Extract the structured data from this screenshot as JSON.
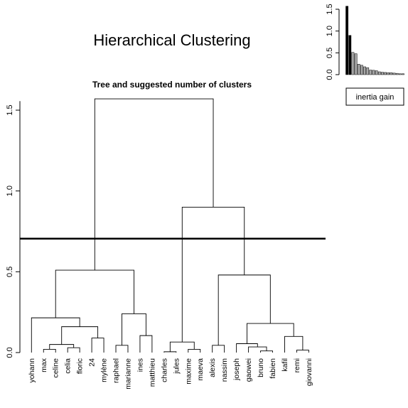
{
  "figure": {
    "title": "Hierarchical Clustering"
  },
  "chart_data": [
    {
      "type": "dendrogram",
      "subtitle": "Tree and suggested number of clusters",
      "ylim": [
        0,
        1.6
      ],
      "yticks": [
        0.0,
        0.5,
        1.0,
        1.5
      ],
      "ytick_labels": [
        "0.0",
        "0.5",
        "1.0",
        "1.5"
      ],
      "cut_height": 0.705,
      "leaves": [
        "yohann",
        "max",
        "celine",
        "celia",
        "floric",
        "24",
        "mylène",
        "raphael",
        "marianne",
        "ines",
        "matthieu",
        "charles",
        "jules",
        "maxime",
        "maeva",
        "alexis",
        "nassim",
        "joseph",
        "gaowei",
        "bruno",
        "fabien",
        "kafil",
        "remi",
        "giovanni"
      ],
      "merges": [
        {
          "id": "m1",
          "left": "L1",
          "right": "L2",
          "height": 0.02
        },
        {
          "id": "m2",
          "left": "L3",
          "right": "L4",
          "height": 0.03
        },
        {
          "id": "m3",
          "left": "L5",
          "right": "L6",
          "height": 0.09
        },
        {
          "id": "m4",
          "left": "m1",
          "right": "m2",
          "height": 0.05
        },
        {
          "id": "m5",
          "left": "m4",
          "right": "m3",
          "height": 0.16
        },
        {
          "id": "m6",
          "left": "L0",
          "right": "m5",
          "height": 0.215
        },
        {
          "id": "m7",
          "left": "L9",
          "right": "L10",
          "height": 0.105
        },
        {
          "id": "m8",
          "left": "L7",
          "right": "L8",
          "height": 0.045
        },
        {
          "id": "m9",
          "left": "m8",
          "right": "m7",
          "height": 0.24
        },
        {
          "id": "m10",
          "left": "m6",
          "right": "m9",
          "height": 0.51
        },
        {
          "id": "m11",
          "left": "L11",
          "right": "L12",
          "height": 0.005
        },
        {
          "id": "m12",
          "left": "L13",
          "right": "L14",
          "height": 0.02
        },
        {
          "id": "m13",
          "left": "m11",
          "right": "m12",
          "height": 0.065
        },
        {
          "id": "m14",
          "left": "L15",
          "right": "L16",
          "height": 0.045
        },
        {
          "id": "m15",
          "left": "L19",
          "right": "L20",
          "height": 0.01
        },
        {
          "id": "m16",
          "left": "L18",
          "right": "m15",
          "height": 0.035
        },
        {
          "id": "m17",
          "left": "L17",
          "right": "m16",
          "height": 0.055
        },
        {
          "id": "m18",
          "left": "L22",
          "right": "L23",
          "height": 0.015
        },
        {
          "id": "m19",
          "left": "L21",
          "right": "m18",
          "height": 0.1
        },
        {
          "id": "m20",
          "left": "m17",
          "right": "m19",
          "height": 0.18
        },
        {
          "id": "m21",
          "left": "m14",
          "right": "m20",
          "height": 0.48
        },
        {
          "id": "m22",
          "left": "m13",
          "right": "m21",
          "height": 0.9
        },
        {
          "id": "m23",
          "left": "m10",
          "right": "m22",
          "height": 1.57
        }
      ]
    },
    {
      "type": "bar",
      "name": "inertia gain",
      "legend_label": "inertia gain",
      "ylim": [
        0,
        1.6
      ],
      "yticks": [
        0.0,
        0.5,
        1.0,
        1.5
      ],
      "ytick_labels": [
        "0.0",
        "0.5",
        "1.0",
        "1.5"
      ],
      "values": [
        1.57,
        0.9,
        0.51,
        0.48,
        0.24,
        0.215,
        0.18,
        0.16,
        0.105,
        0.1,
        0.09,
        0.065,
        0.055,
        0.05,
        0.045,
        0.045,
        0.035,
        0.03,
        0.02,
        0.02
      ],
      "highlight_count": 2,
      "colors": {
        "highlight": "#000000",
        "other": "#a8a8a8",
        "stroke": "#000000"
      }
    }
  ]
}
